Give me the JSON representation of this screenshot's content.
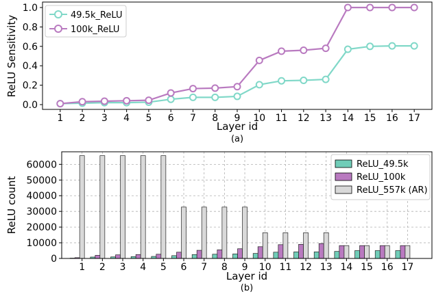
{
  "chart_data": [
    {
      "type": "line",
      "caption": "(a)",
      "xlabel": "Layer id",
      "ylabel": "ReLU Sensitivity",
      "x": [
        1,
        2,
        3,
        4,
        5,
        6,
        7,
        8,
        9,
        10,
        11,
        12,
        13,
        14,
        15,
        16,
        17
      ],
      "ylim": [
        0,
        1.0
      ],
      "yticks": [
        0.0,
        0.2,
        0.4,
        0.6,
        0.8,
        1.0
      ],
      "ytick_labels": [
        "0.0",
        "0.2",
        "0.4",
        "0.6",
        "0.8",
        "1.0"
      ],
      "grid": false,
      "legend_position": "top-left",
      "series": [
        {
          "name": "49.5k_ReLU",
          "color": "#80d8c8",
          "values": [
            0.01,
            0.015,
            0.02,
            0.02,
            0.025,
            0.055,
            0.075,
            0.075,
            0.085,
            0.205,
            0.245,
            0.25,
            0.26,
            0.57,
            0.6,
            0.605,
            0.605
          ]
        },
        {
          "name": "100k_ReLU",
          "color": "#b97ac0",
          "values": [
            0.01,
            0.03,
            0.035,
            0.04,
            0.045,
            0.12,
            0.165,
            0.17,
            0.185,
            0.455,
            0.55,
            0.56,
            0.58,
            1.0,
            1.0,
            1.0,
            1.0
          ]
        }
      ]
    },
    {
      "type": "bar",
      "caption": "(b)",
      "xlabel": "Layer id",
      "ylabel": "ReLU count",
      "categories": [
        "1",
        "2",
        "3",
        "4",
        "5",
        "6",
        "7",
        "8",
        "9",
        "10",
        "11",
        "12",
        "13",
        "14",
        "15",
        "16",
        "17"
      ],
      "ylim": [
        0,
        68000
      ],
      "yticks": [
        0,
        10000,
        20000,
        30000,
        40000,
        50000,
        60000
      ],
      "ytick_labels": [
        "0",
        "10000",
        "20000",
        "30000",
        "40000",
        "50000",
        "60000"
      ],
      "grid": true,
      "legend_position": "top-right",
      "series": [
        {
          "name": "ReLU_49.5k",
          "color": "#70cdb8",
          "values": [
            200,
            900,
            1000,
            1200,
            1300,
            1800,
            2500,
            2700,
            2900,
            3200,
            4000,
            4200,
            4200,
            4500,
            5000,
            5000,
            5000
          ]
        },
        {
          "name": "ReLU_100k",
          "color": "#b97ac0",
          "values": [
            500,
            2000,
            2300,
            2500,
            2700,
            4000,
            5200,
            5500,
            6200,
            7500,
            8800,
            9000,
            9500,
            8192,
            8192,
            8192,
            8192
          ]
        },
        {
          "name": "ReLU_557k (AR)",
          "color": "#d9d9d9",
          "values": [
            65536,
            65536,
            65536,
            65536,
            65536,
            32768,
            32768,
            32768,
            32768,
            16384,
            16384,
            16384,
            16384,
            8192,
            8192,
            8192,
            8192
          ]
        }
      ]
    }
  ]
}
